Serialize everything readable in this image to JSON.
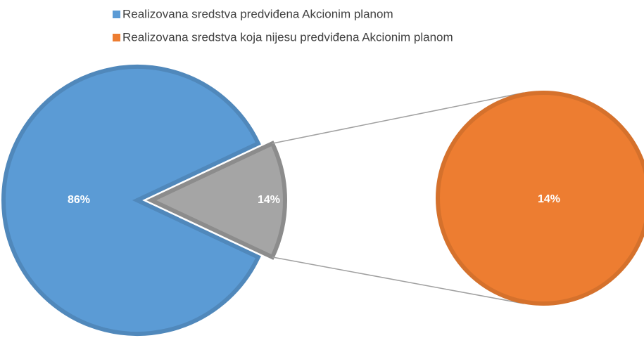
{
  "chart_data": {
    "type": "pie_of_pie",
    "categories": [
      "Realizovana sredstva predviđena Akcionim planom",
      "Realizovana sredstva koja nijesu predviđena Akcionim planom"
    ],
    "values": [
      86,
      14
    ],
    "value_labels": [
      "86%",
      "14%"
    ],
    "colors": [
      "#5b9bd5",
      "#ed7d31"
    ],
    "other_color": "#a5a5a5",
    "legend": "top"
  }
}
